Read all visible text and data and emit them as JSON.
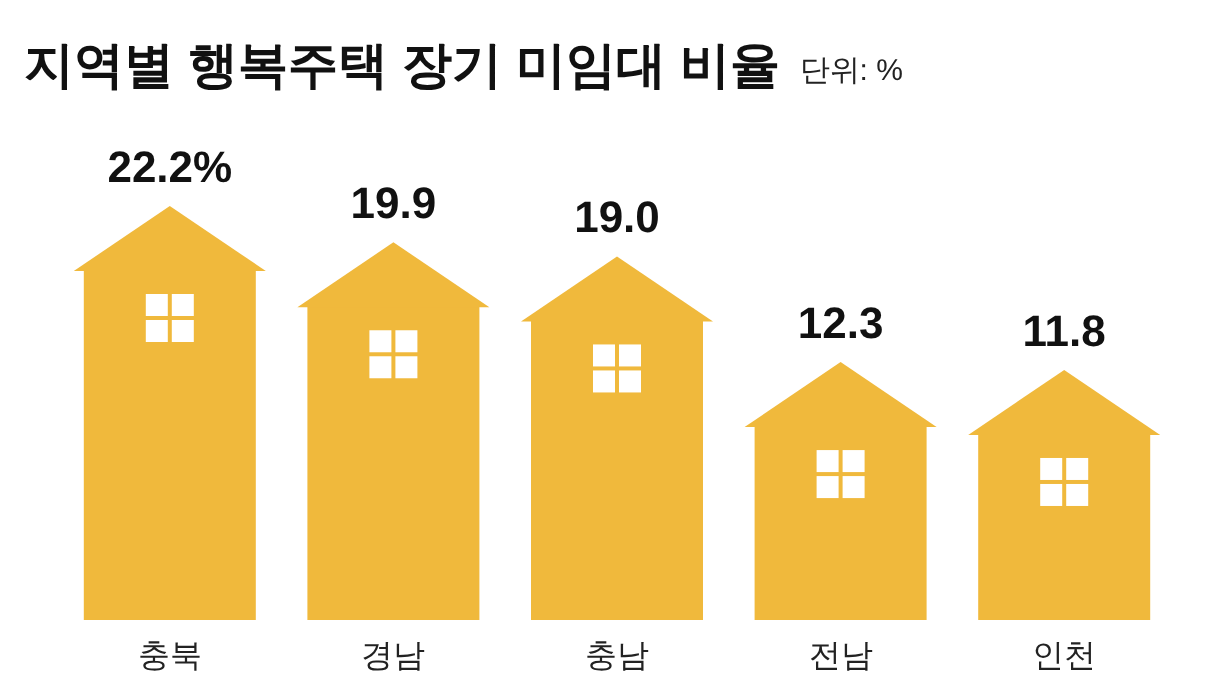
{
  "chart_data": {
    "type": "bar",
    "title": "지역별 행복주택 장기 미임대 비율",
    "subtitle": "단위: %",
    "categories": [
      "충북",
      "경남",
      "충남",
      "전남",
      "인천"
    ],
    "values": [
      22.2,
      19.9,
      19.0,
      12.3,
      11.8
    ],
    "value_labels": [
      "22.2%",
      "19.9",
      "19.0",
      "12.3",
      "11.8"
    ],
    "color": "#f0b93c"
  }
}
